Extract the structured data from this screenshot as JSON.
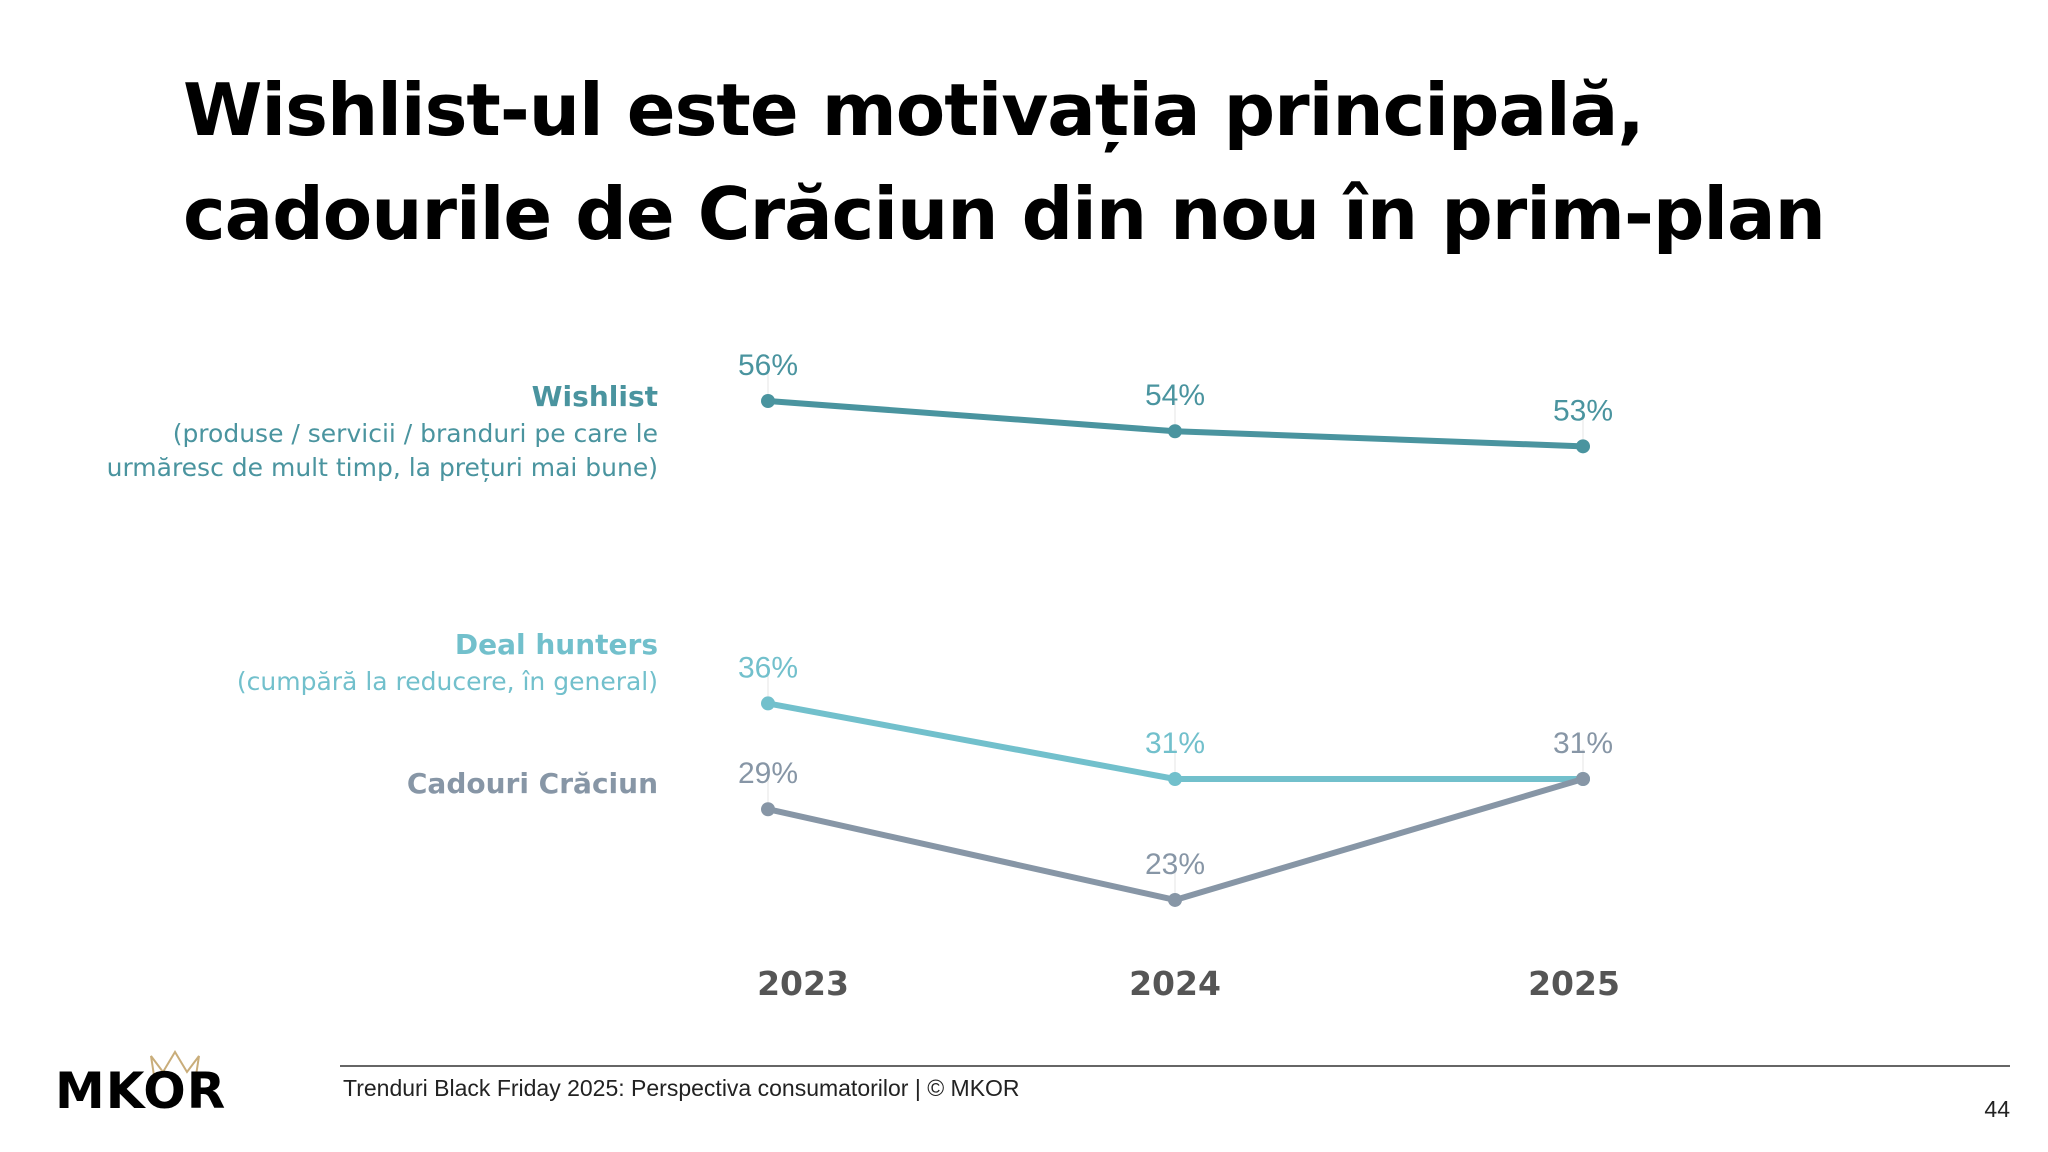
{
  "title_lines": [
    "Wishlist-ul este motivația principală,",
    "cadourile de Crăciun din nou în prim-plan"
  ],
  "series_labels": [
    {
      "heading": "Wishlist",
      "sub": [
        "(produse / servicii / branduri pe care le",
        "urmăresc de mult timp, la prețuri mai bune)"
      ]
    },
    {
      "heading": "Deal hunters",
      "sub": [
        "(cumpără la reducere, în general)"
      ]
    },
    {
      "heading": "Cadouri Crăciun",
      "sub": []
    }
  ],
  "chart_data": {
    "type": "line",
    "categories": [
      "2023",
      "2024",
      "2025"
    ],
    "series": [
      {
        "name": "Wishlist",
        "values": [
          56,
          54,
          53
        ],
        "labels": [
          "56%",
          "54%",
          "53%"
        ],
        "color": "#4a949f"
      },
      {
        "name": "Deal hunters",
        "values": [
          36,
          31,
          31
        ],
        "labels": [
          "36%",
          "31%",
          ""
        ],
        "color": "#72c0cc"
      },
      {
        "name": "Cadouri Crăciun",
        "values": [
          29,
          23,
          31
        ],
        "labels": [
          "29%",
          "23%",
          "31%"
        ],
        "color": "#8796a6"
      }
    ],
    "unit": "%",
    "grid": false,
    "legend": "left"
  },
  "footer": {
    "text": "Trenduri Black Friday 2025: Perspectiva consumatorilor | © MKOR",
    "page_number": "44"
  },
  "logo": {
    "text": "MKOR"
  }
}
